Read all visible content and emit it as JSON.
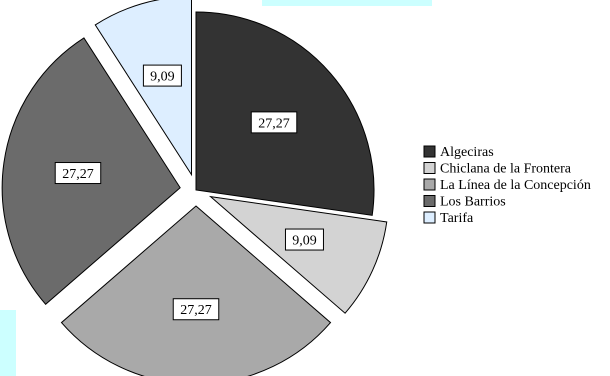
{
  "chart_data": {
    "type": "pie",
    "title": "",
    "legend_position": "right",
    "slices": [
      {
        "name": "Algeciras",
        "value": 27.27,
        "label": "27,27",
        "color": "#333333",
        "exploded": false
      },
      {
        "name": "Chiclana de la Frontera",
        "value": 9.09,
        "label": "9,09",
        "color": "#d3d3d3",
        "exploded": true
      },
      {
        "name": "La Línea de la Concepción",
        "value": 27.27,
        "label": "27,27",
        "color": "#a9a9a9",
        "exploded": true
      },
      {
        "name": "Los Barrios",
        "value": 27.27,
        "label": "27,27",
        "color": "#6b6b6b",
        "exploded": true
      },
      {
        "name": "Tarifa",
        "value": 9.09,
        "label": "9,09",
        "color": "#ddeeff",
        "exploded": true
      }
    ]
  },
  "background": {
    "accent_color": "#ccffff"
  }
}
